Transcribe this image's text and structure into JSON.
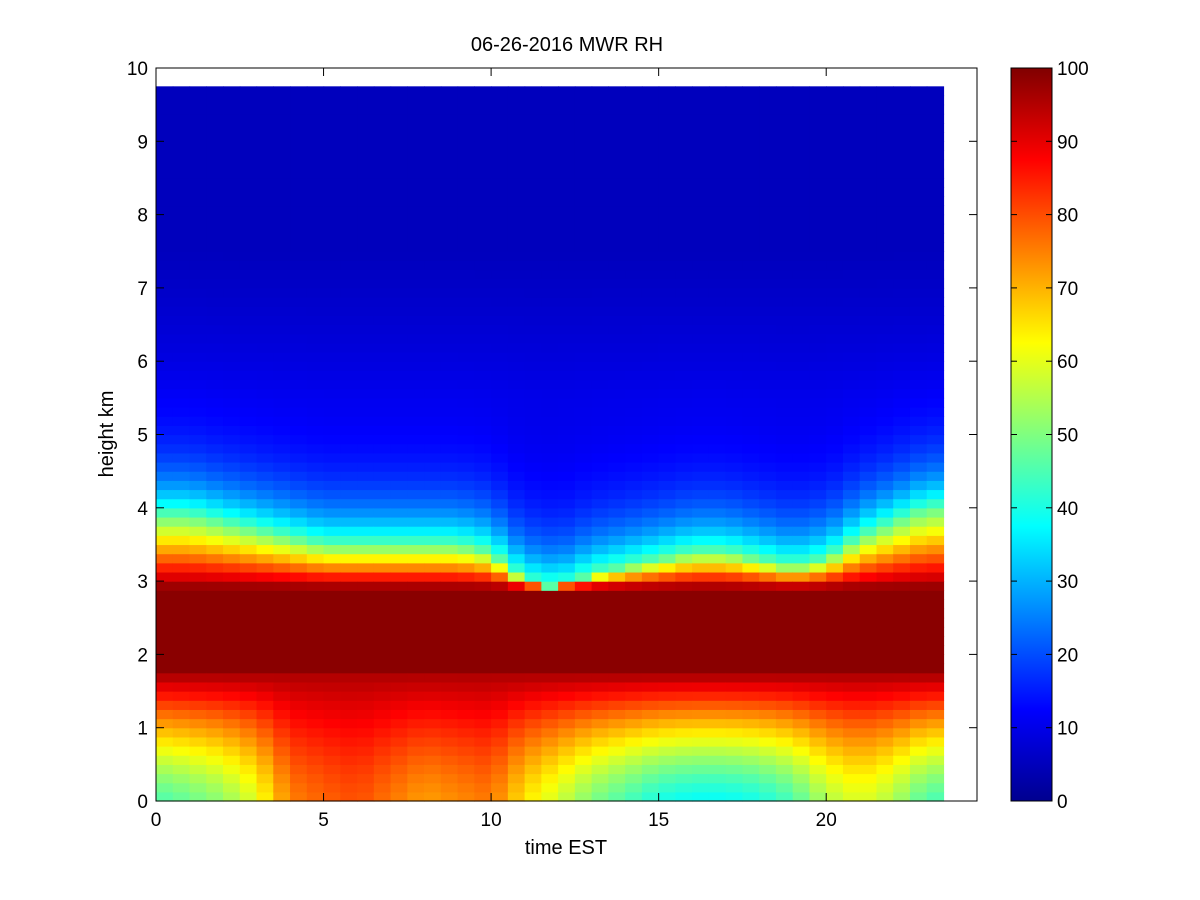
{
  "chart_data": {
    "type": "heatmap",
    "title": "06-26-2016 MWR RH",
    "xlabel": "time EST",
    "ylabel": "height km",
    "xlim": [
      0,
      24.5
    ],
    "ylim": [
      0,
      10
    ],
    "data_x_range": [
      0,
      23.5
    ],
    "data_y_range": [
      0,
      9.75
    ],
    "x_ticks": [
      "0",
      "5",
      "10",
      "15",
      "20"
    ],
    "y_ticks": [
      "0",
      "1",
      "2",
      "3",
      "4",
      "5",
      "6",
      "7",
      "8",
      "9",
      "10"
    ],
    "colorbar": {
      "colormap": "jet",
      "range": [
        0,
        100
      ],
      "ticks": [
        "0",
        "10",
        "20",
        "30",
        "40",
        "50",
        "60",
        "70",
        "80",
        "90",
        "100"
      ]
    },
    "approx_profile_summary": {
      "times_hours": [
        0,
        1,
        2,
        3,
        4,
        5,
        6,
        7,
        8,
        9,
        10,
        11,
        12,
        13,
        14,
        15,
        16,
        17,
        18,
        19,
        20,
        21,
        22,
        23
      ],
      "surface_rh_percent": [
        45,
        48,
        52,
        60,
        75,
        78,
        80,
        76,
        72,
        74,
        76,
        65,
        58,
        50,
        45,
        40,
        38,
        38,
        40,
        45,
        55,
        60,
        55,
        45
      ],
      "max_rh_height_km": 2.3,
      "moist_layer_top_km": [
        3.9,
        3.9,
        3.8,
        3.7,
        3.6,
        3.5,
        3.5,
        3.5,
        3.5,
        3.5,
        3.4,
        3.0,
        2.9,
        3.1,
        3.2,
        3.3,
        3.4,
        3.4,
        3.3,
        3.2,
        3.3,
        3.6,
        3.8,
        4.0
      ],
      "upper_air_rh_percent": 10
    }
  }
}
